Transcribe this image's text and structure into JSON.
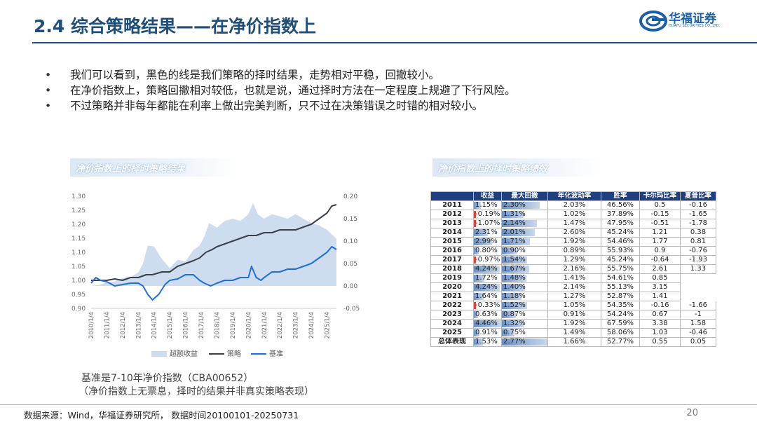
{
  "header": {
    "title": "2.4 综合策略结果——在净价指数上",
    "logo_cn": "华福证券",
    "logo_en": "HUAFU SECURITIES CO.,LTD."
  },
  "bullets": [
    "我们可以看到，黑色的线是我们策略的择时结果，走势相对平稳，回撤较小。",
    "在净价指数上，策略回撤相对较低，也就是说，通过择时方法在一定程度上规避了下行风险。",
    "不过策略并非每年都能在利率上做出完美判断，只不过在决策错误之时错的相对较小。"
  ],
  "left_panel": {
    "title": "净价指数上的择时策略结果"
  },
  "right_panel": {
    "title": "净价指数上的择时策略绩效"
  },
  "colors": {
    "brand": "#1f4e79",
    "strategy_line": "#3a3f4a",
    "benchmark_line": "#1f6fd6",
    "excess_area": "#cddcef",
    "table_header": "#1f3f7f",
    "neg_bar": "#e8413a"
  },
  "chart_data": {
    "type": "line",
    "title": "",
    "x_labels": [
      "2010/1/4",
      "2011/1/4",
      "2012/1/4",
      "2013/1/4",
      "2014/1/4",
      "2015/1/4",
      "2016/1/4",
      "2017/1/4",
      "2018/1/4",
      "2019/1/4",
      "2020/1/4",
      "2021/1/4",
      "2022/1/4",
      "2023/1/4",
      "2024/1/4",
      "2025/1/4"
    ],
    "y_left": {
      "min": 0.9,
      "max": 1.3,
      "ticks": [
        "1.30",
        "1.25",
        "1.20",
        "1.15",
        "1.10",
        "1.05",
        "1.00",
        "0.95",
        "0.90"
      ]
    },
    "y_right": {
      "min": -0.05,
      "max": 0.2,
      "ticks": [
        "0.20",
        "0.15",
        "0.10",
        "0.05",
        "0.00",
        "-0.05"
      ]
    },
    "legend": {
      "placement": "bottom",
      "items": [
        "超额收益",
        "策略",
        "基准"
      ]
    },
    "series": [
      {
        "name": "超额收益",
        "kind": "area",
        "axis": "right",
        "x": [
          2010.0,
          2010.5,
          2011.0,
          2011.5,
          2012.0,
          2012.5,
          2013.0,
          2013.3,
          2013.6,
          2014.0,
          2014.5,
          2015.0,
          2015.5,
          2016.0,
          2016.5,
          2016.9,
          2017.2,
          2017.5,
          2018.0,
          2018.5,
          2019.0,
          2019.5,
          2020.0,
          2020.3,
          2020.6,
          2021.0,
          2021.5,
          2022.0,
          2022.5,
          2023.0,
          2023.5,
          2024.0,
          2024.5,
          2025.0,
          2025.6
        ],
        "values": [
          0.0,
          0.002,
          0.008,
          0.01,
          0.018,
          0.02,
          0.03,
          0.05,
          0.09,
          0.088,
          0.06,
          0.04,
          0.058,
          0.055,
          0.08,
          0.09,
          0.11,
          0.14,
          0.13,
          0.145,
          0.15,
          0.145,
          0.16,
          0.185,
          0.16,
          0.15,
          0.16,
          0.155,
          0.15,
          0.16,
          0.15,
          0.14,
          0.135,
          0.125,
          0.105
        ]
      },
      {
        "name": "策略",
        "kind": "line",
        "axis": "left",
        "x": [
          2010.0,
          2010.5,
          2011.0,
          2011.5,
          2012.0,
          2012.5,
          2013.0,
          2013.5,
          2013.9,
          2014.5,
          2015.0,
          2015.5,
          2016.0,
          2016.5,
          2016.9,
          2017.3,
          2017.7,
          2018.0,
          2018.5,
          2019.0,
          2019.5,
          2020.0,
          2020.5,
          2021.0,
          2021.5,
          2022.0,
          2022.5,
          2023.0,
          2023.5,
          2024.0,
          2024.5,
          2025.0,
          2025.3,
          2025.6
        ],
        "values": [
          1.0,
          1.0,
          1.0,
          1.005,
          1.0,
          1.01,
          1.01,
          1.02,
          1.02,
          1.03,
          1.03,
          1.05,
          1.06,
          1.07,
          1.08,
          1.1,
          1.11,
          1.12,
          1.13,
          1.14,
          1.15,
          1.16,
          1.16,
          1.17,
          1.17,
          1.18,
          1.18,
          1.18,
          1.19,
          1.2,
          1.22,
          1.24,
          1.265,
          1.27
        ]
      },
      {
        "name": "基准",
        "kind": "line",
        "axis": "left",
        "x": [
          2010.0,
          2010.3,
          2010.6,
          2011.0,
          2011.5,
          2012.0,
          2012.5,
          2013.0,
          2013.3,
          2013.6,
          2013.9,
          2014.3,
          2014.7,
          2015.0,
          2015.5,
          2016.0,
          2016.5,
          2016.9,
          2017.2,
          2017.6,
          2018.0,
          2018.5,
          2019.0,
          2019.5,
          2020.0,
          2020.2,
          2020.5,
          2020.8,
          2021.0,
          2021.5,
          2022.0,
          2022.5,
          2023.0,
          2023.5,
          2024.0,
          2024.5,
          2025.0,
          2025.3,
          2025.6
        ],
        "values": [
          0.99,
          1.01,
          1.0,
          0.995,
          0.98,
          0.985,
          0.99,
          0.99,
          0.98,
          0.95,
          0.93,
          0.95,
          0.985,
          1.0,
          1.005,
          1.02,
          1.02,
          1.0,
          0.99,
          0.98,
          0.99,
          1.0,
          1.0,
          1.01,
          1.01,
          1.05,
          1.01,
          1.0,
          1.01,
          1.03,
          1.03,
          1.04,
          1.04,
          1.05,
          1.06,
          1.08,
          1.1,
          1.12,
          1.11
        ]
      }
    ]
  },
  "table": {
    "headers": [
      "",
      "收益",
      "最大回撤",
      "年化波动率",
      "胜率",
      "卡尔玛比率",
      "夏普比率"
    ],
    "scale": {
      "return_max": 4.46,
      "drawdown_max": 2.77
    },
    "rows": [
      {
        "year": "2011",
        "ret": "1.15%",
        "ret_v": 1.15,
        "dd": "2.30%",
        "dd_v": 2.3,
        "vol": "2.03%",
        "win": "46.56%",
        "calmar": "0.5",
        "sharpe": "-0.16"
      },
      {
        "year": "2012",
        "ret": "-0.19%",
        "ret_v": -0.19,
        "dd": "1.31%",
        "dd_v": 1.31,
        "vol": "1.02%",
        "win": "37.89%",
        "calmar": "-0.15",
        "sharpe": "-1.65"
      },
      {
        "year": "2013",
        "ret": "-1.07%",
        "ret_v": -1.07,
        "dd": "2.14%",
        "dd_v": 2.14,
        "vol": "1.47%",
        "win": "47.95%",
        "calmar": "-0.51",
        "sharpe": "-1.78"
      },
      {
        "year": "2014",
        "ret": "2.31%",
        "ret_v": 2.31,
        "dd": "2.01%",
        "dd_v": 2.01,
        "vol": "2.60%",
        "win": "45.24%",
        "calmar": "1.21",
        "sharpe": "0.38"
      },
      {
        "year": "2015",
        "ret": "2.99%",
        "ret_v": 2.99,
        "dd": "1.71%",
        "dd_v": 1.71,
        "vol": "1.92%",
        "win": "54.46%",
        "calmar": "1.77",
        "sharpe": "0.81"
      },
      {
        "year": "2016",
        "ret": "0.80%",
        "ret_v": 0.8,
        "dd": "0.90%",
        "dd_v": 0.9,
        "vol": "0.89%",
        "win": "55.93%",
        "calmar": "0.9",
        "sharpe": "-0.76"
      },
      {
        "year": "2017",
        "ret": "-0.97%",
        "ret_v": -0.97,
        "dd": "1.54%",
        "dd_v": 1.54,
        "vol": "1.29%",
        "win": "45.24%",
        "calmar": "-0.64",
        "sharpe": "-1.93"
      },
      {
        "year": "2018",
        "ret": "4.24%",
        "ret_v": 4.24,
        "dd": "1.67%",
        "dd_v": 1.67,
        "vol": "2.16%",
        "win": "55.75%",
        "calmar": "2.61",
        "sharpe": "1.33"
      },
      {
        "year": "2019",
        "ret": "1.72%",
        "ret_v": 1.72,
        "dd": "1.48%",
        "dd_v": 1.48,
        "vol": "1.41%",
        "win": "54.61%",
        "calmar": "0.85",
        "sharpe": ""
      },
      {
        "year": "2020",
        "ret": "4.24%",
        "ret_v": 4.24,
        "dd": "1.40%",
        "dd_v": 1.4,
        "vol": "2.14%",
        "win": "55.13%",
        "calmar": "3.15",
        "sharpe": ""
      },
      {
        "year": "2021",
        "ret": "1.64%",
        "ret_v": 1.64,
        "dd": "1.18%",
        "dd_v": 1.18,
        "vol": "1.27%",
        "win": "52.87%",
        "calmar": "1.41",
        "sharpe": ""
      },
      {
        "year": "2022",
        "ret": "-0.33%",
        "ret_v": -0.33,
        "dd": "1.52%",
        "dd_v": 1.52,
        "vol": "1.05%",
        "win": "54.35%",
        "calmar": "-0.16",
        "sharpe": "-1.66"
      },
      {
        "year": "2023",
        "ret": "0.63%",
        "ret_v": 0.63,
        "dd": "0.87%",
        "dd_v": 0.87,
        "vol": "0.91%",
        "win": "54.24%",
        "calmar": "0.67",
        "sharpe": "-1"
      },
      {
        "year": "2024",
        "ret": "4.46%",
        "ret_v": 4.46,
        "dd": "1.32%",
        "dd_v": 1.32,
        "vol": "1.92%",
        "win": "67.59%",
        "calmar": "3.38",
        "sharpe": "1.58"
      },
      {
        "year": "2025",
        "ret": "0.91%",
        "ret_v": 0.91,
        "dd": "0.75%",
        "dd_v": 0.75,
        "vol": "1.49%",
        "win": "58.06%",
        "calmar": "1.03",
        "sharpe": "-0.46"
      },
      {
        "year": "总体表现",
        "ret": "1.53%",
        "ret_v": 1.53,
        "dd": "2.77%",
        "dd_v": 2.77,
        "vol": "1.66%",
        "win": "52.77%",
        "calmar": "0.55",
        "sharpe": "0.05"
      }
    ]
  },
  "notes": {
    "line1": "基准是7-10年净价指数（CBA00652）",
    "line2": "（净价指数上无票息，择时的结果并非真实策略表现）"
  },
  "footer": {
    "source": "数据来源：Wind，华福证券研究所， 数据时间20100101-20250731",
    "page": "20"
  }
}
